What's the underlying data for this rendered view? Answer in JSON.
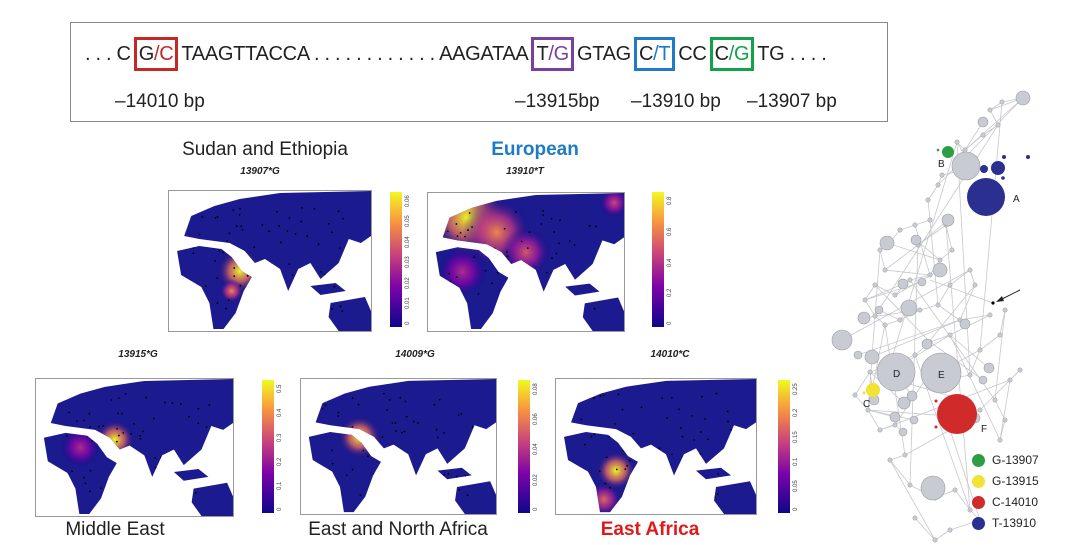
{
  "sequence": {
    "parts": [
      {
        "type": "text",
        "text": ". . . C"
      },
      {
        "type": "snp",
        "a": "G",
        "b": "C",
        "sep": "/",
        "color": "#c62828",
        "name": "snp-14010"
      },
      {
        "type": "text",
        "text": "TAAGTTACCA . . . . . . . . . . . . AAGATAA"
      },
      {
        "type": "snp",
        "a": "T",
        "b": "G",
        "sep": "/",
        "color": "#7b3fa0",
        "name": "snp-13915"
      },
      {
        "type": "text",
        "text": "GTAG"
      },
      {
        "type": "snp",
        "a": "C",
        "b": "T",
        "sep": "/",
        "color": "#1f7bc8",
        "name": "snp-13910"
      },
      {
        "type": "text",
        "text": "CC"
      },
      {
        "type": "snp",
        "a": "C",
        "b": "G",
        "sep": "/",
        "color": "#12a24a",
        "name": "snp-13907"
      },
      {
        "type": "text",
        "text": "TG . . . ."
      }
    ],
    "positions": [
      "–14010 bp",
      "–13915bp",
      "–13910 bp",
      "–13907 bp"
    ]
  },
  "maps": [
    {
      "allele": "13907*G",
      "title": "Sudan and Ethiopia",
      "title_color": "#222222",
      "title_bold": false,
      "ticks": [
        "0",
        "0.01",
        "0.02",
        "0.03",
        "0.04",
        "0.05",
        "0.06"
      ]
    },
    {
      "allele": "13910*T",
      "title": "European",
      "title_color": "#1f7bc8",
      "title_bold": true,
      "ticks": [
        "0",
        "0.2",
        "0.4",
        "0.6",
        "0.8"
      ]
    },
    {
      "allele": "13915*G",
      "title": "Middle East",
      "title_color": "#222222",
      "title_bold": false,
      "ticks": [
        "0",
        "0.1",
        "0.2",
        "0.3",
        "0.4",
        "0.5"
      ]
    },
    {
      "allele": "14009*G",
      "title": "East and North Africa",
      "title_color": "#222222",
      "title_bold": false,
      "ticks": [
        "0",
        "0.02",
        "0.04",
        "0.06",
        "0.08"
      ]
    },
    {
      "allele": "14010*C",
      "title": "East Africa",
      "title_color": "#e11919",
      "title_bold": true,
      "ticks": [
        "0",
        "0.05",
        "0.1",
        "0.15",
        "0.2",
        "0.25"
      ]
    }
  ],
  "network": {
    "labels": [
      "A",
      "B",
      "C",
      "D",
      "E",
      "F"
    ],
    "legend": [
      {
        "label": "G-13907",
        "color": "#2e9e44"
      },
      {
        "label": "G-13915",
        "color": "#f2e233"
      },
      {
        "label": "C-14010",
        "color": "#d12a2a"
      },
      {
        "label": "T-13910",
        "color": "#2b2f8f"
      }
    ]
  }
}
